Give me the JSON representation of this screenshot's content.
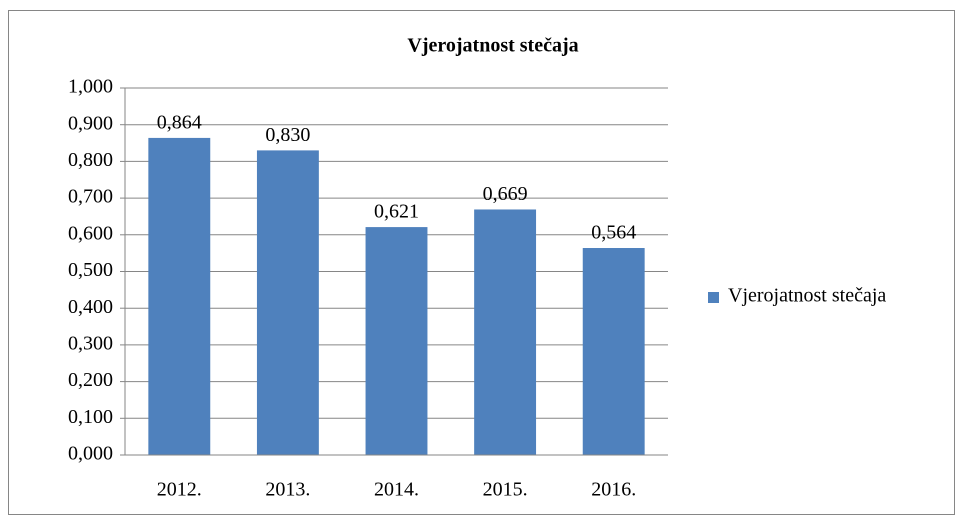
{
  "chart_data": {
    "type": "bar",
    "title": "Vjerojatnost stečaja",
    "categories": [
      "2012.",
      "2013.",
      "2014.",
      "2015.",
      "2016."
    ],
    "series": [
      {
        "name": "Vjerojatnost stečaja",
        "color": "#4f81bd",
        "values": [
          0.864,
          0.83,
          0.621,
          0.669,
          0.564
        ],
        "value_labels": [
          "0,864",
          "0,830",
          "0,621",
          "0,669",
          "0,564"
        ]
      }
    ],
    "ylim": [
      0,
      1
    ],
    "yticks": [
      {
        "value": 0,
        "label": "0,000"
      },
      {
        "value": 0.1,
        "label": "0,100"
      },
      {
        "value": 0.2,
        "label": "0,200"
      },
      {
        "value": 0.3,
        "label": "0,300"
      },
      {
        "value": 0.4,
        "label": "0,400"
      },
      {
        "value": 0.5,
        "label": "0,500"
      },
      {
        "value": 0.6,
        "label": "0,600"
      },
      {
        "value": 0.7,
        "label": "0,700"
      },
      {
        "value": 0.8,
        "label": "0,800"
      },
      {
        "value": 0.9,
        "label": "0,900"
      },
      {
        "value": 1,
        "label": "1,000"
      }
    ],
    "grid": true,
    "legend": "right"
  }
}
